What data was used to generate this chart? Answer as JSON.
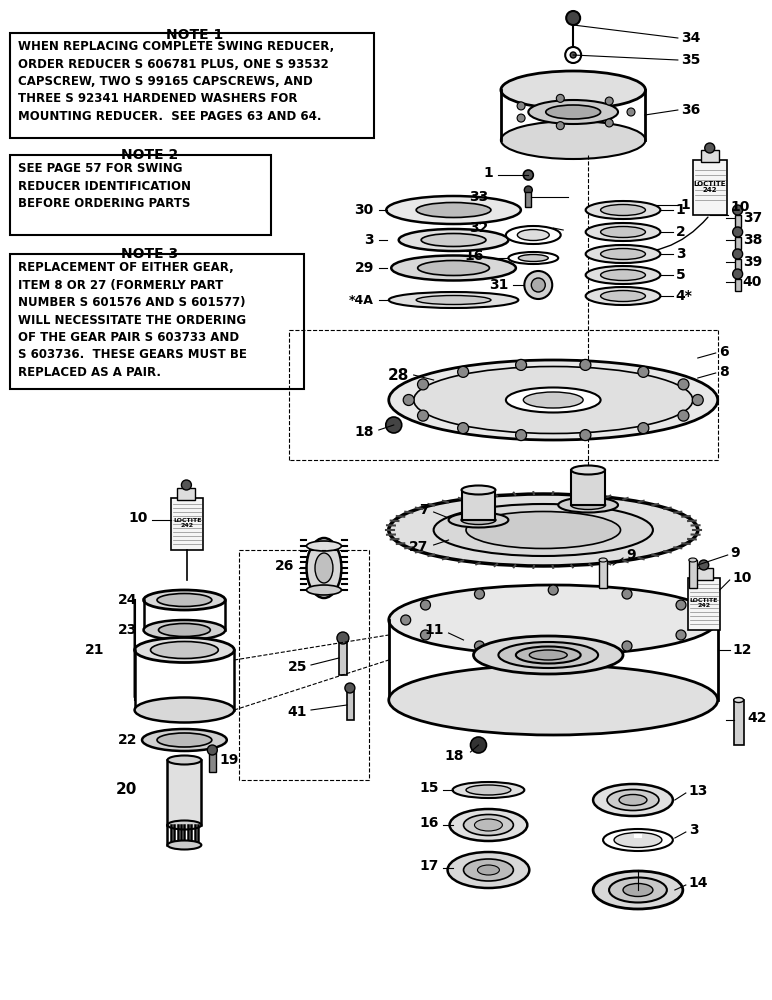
{
  "bg": "#ffffff",
  "note1_title": "NOTE 1",
  "note1_text": "WHEN REPLACING COMPLETE SWING REDUCER,\nORDER REDUCER S 606781 PLUS, ONE S 93532\nCAPSCREW, TWO S 99165 CAPSCREWS, AND\nTHREE S 92341 HARDENED WASHERS FOR\nMOUNTING REDUCER.  SEE PAGES 63 AND 64.",
  "note2_title": "NOTE 2",
  "note2_text": "SEE PAGE 57 FOR SWING\nREDUCER IDENTIFICATION\nBEFORE ORDERING PARTS",
  "note3_title": "NOTE 3",
  "note3_text": "REPLACEMENT OF EITHER GEAR,\nITEM 8 OR 27 (FORMERLY PART\nNUMBER S 601576 AND S 601577)\nWILL NECESSITATE THE ORDERING\nOF THE GEAR PAIR S 603733 AND\nS 603736.  THESE GEARS MUST BE\nREPLACED AS A PAIR.",
  "fig_width": 7.72,
  "fig_height": 10.0,
  "dpi": 100
}
